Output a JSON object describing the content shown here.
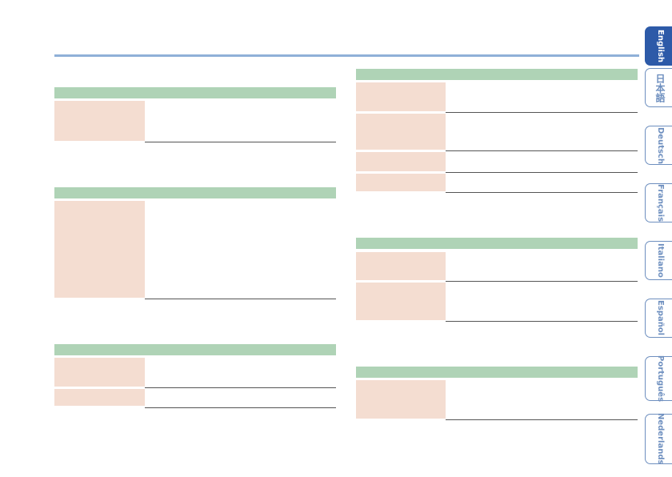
{
  "languages": [
    "English",
    "日本語",
    "Deutsch",
    "Français",
    "Italiano",
    "Español",
    "Português",
    "Nederlands"
  ],
  "active_language": "English",
  "colors": {
    "title_rule": "#8fb0d8",
    "section_header": "#afd3b6",
    "label_cell": "#f4ddd1",
    "tab_active": "#2d5aa8",
    "tab_border": "#6e8fbf"
  }
}
